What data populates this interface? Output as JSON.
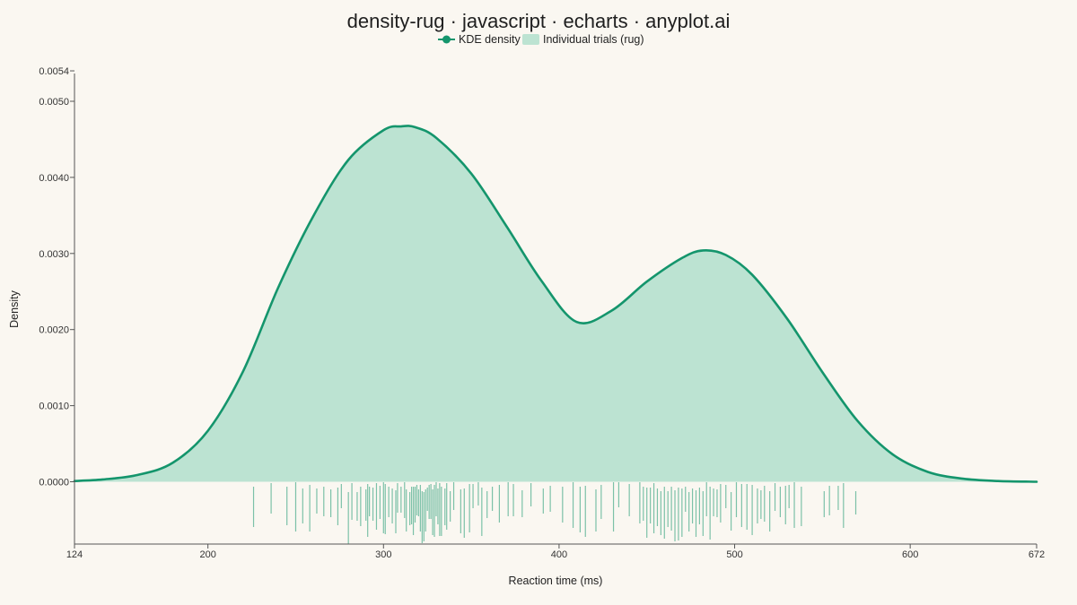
{
  "colors": {
    "background": "#faf7f1",
    "line": "#14956c",
    "fill": "#bce3d2",
    "rug": "#14956c"
  },
  "chart_data": {
    "type": "area",
    "title": "density-rug · javascript · echarts · anyplot.ai",
    "xlabel": "Reaction time (ms)",
    "ylabel": "Density",
    "xlim": [
      124,
      672
    ],
    "ylim": [
      0,
      0.0054
    ],
    "x_ticks": [
      124,
      200,
      300,
      400,
      500,
      600,
      672
    ],
    "y_ticks": [
      0,
      0.001,
      0.002,
      0.003,
      0.004,
      0.005,
      0.0054
    ],
    "y_tick_labels": [
      "0.0000",
      "0.0010",
      "0.0020",
      "0.0030",
      "0.0040",
      "0.0050",
      "0.0054"
    ],
    "legend": {
      "position": "top-center",
      "items": [
        {
          "label": "KDE density",
          "kind": "line"
        },
        {
          "label": "Individual trials (rug)",
          "kind": "area"
        }
      ]
    },
    "series": [
      {
        "name": "KDE density",
        "x": [
          124,
          140,
          160,
          180,
          200,
          220,
          240,
          260,
          280,
          300,
          310,
          318,
          330,
          350,
          370,
          390,
          410,
          430,
          450,
          470,
          482,
          495,
          510,
          530,
          550,
          570,
          590,
          610,
          630,
          650,
          672
        ],
        "y": [
          1e-05,
          3e-05,
          9e-05,
          0.00025,
          0.00067,
          0.00145,
          0.00255,
          0.00349,
          0.00423,
          0.00462,
          0.00467,
          0.00466,
          0.00452,
          0.00405,
          0.00336,
          0.00264,
          0.0021,
          0.00225,
          0.00263,
          0.00294,
          0.00304,
          0.00298,
          0.00272,
          0.00214,
          0.00144,
          0.0008,
          0.00036,
          0.00013,
          4e-05,
          1e-05,
          0.0
        ]
      },
      {
        "name": "Individual trials (rug)",
        "x": [
          226,
          236,
          245,
          250,
          254,
          258,
          262,
          266,
          270,
          274,
          276,
          280,
          282,
          285,
          287,
          290,
          291,
          292,
          294,
          296,
          298,
          300,
          301,
          303,
          305,
          307,
          308,
          310,
          312,
          313,
          315,
          316,
          317,
          318,
          319,
          320,
          321,
          322,
          323,
          324,
          325,
          326,
          327,
          328,
          329,
          330,
          331,
          332,
          333,
          335,
          336,
          338,
          340,
          344,
          346,
          349,
          351,
          354,
          356,
          359,
          362,
          366,
          371,
          374,
          379,
          384,
          391,
          395,
          402,
          408,
          412,
          415,
          421,
          424,
          431,
          434,
          440,
          446,
          448,
          450,
          452,
          454,
          456,
          458,
          460,
          462,
          464,
          466,
          468,
          470,
          472,
          474,
          476,
          478,
          480,
          482,
          484,
          486,
          488,
          490,
          492,
          495,
          498,
          501,
          504,
          507,
          510,
          513,
          515,
          517,
          520,
          523,
          526,
          529,
          531,
          534,
          538,
          551,
          554,
          559,
          562,
          569
        ]
      }
    ]
  }
}
